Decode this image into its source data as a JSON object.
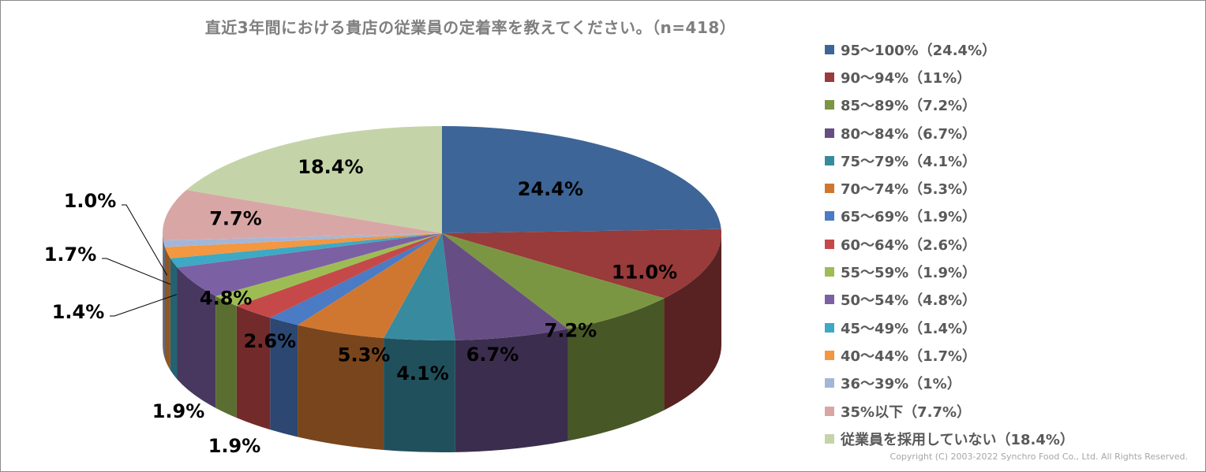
{
  "chart_data": {
    "type": "pie",
    "title": "直近3年間における貴店の従業員の定着率を教えてください。（n=418）",
    "data_labels": [
      "24.4%",
      "11.0%",
      "7.2%",
      "6.7%",
      "4.1%",
      "5.3%",
      "1.9%",
      "2.6%",
      "1.9%",
      "4.8%",
      "1.4%",
      "1.7%",
      "1.0%",
      "7.7%",
      "18.4%"
    ],
    "slices": [
      {
        "legend": "95～100%（24.4%）",
        "value": 24.4,
        "color": "#3d6597"
      },
      {
        "legend": "90～94%（11%）",
        "value": 11.0,
        "color": "#983b3a"
      },
      {
        "legend": "85～89%（7.2%）",
        "value": 7.2,
        "color": "#7b9642"
      },
      {
        "legend": "80～84%（6.7%）",
        "value": 6.7,
        "color": "#664e84"
      },
      {
        "legend": "75～79%（4.1%）",
        "value": 4.1,
        "color": "#388a9f"
      },
      {
        "legend": "70～74%（5.3%）",
        "value": 5.3,
        "color": "#cf7731"
      },
      {
        "legend": "65～69%（1.9%）",
        "value": 1.9,
        "color": "#4a7bc4"
      },
      {
        "legend": "60～64%（2.6%）",
        "value": 2.6,
        "color": "#c6494a"
      },
      {
        "legend": "55～59%（1.9%）",
        "value": 1.9,
        "color": "#9dbd54"
      },
      {
        "legend": "50～54%（4.8%）",
        "value": 4.8,
        "color": "#7c60a4"
      },
      {
        "legend": "45～49%（1.4%）",
        "value": 1.4,
        "color": "#3ea9c4"
      },
      {
        "legend": "40～44%（1.7%）",
        "value": 1.7,
        "color": "#f39740"
      },
      {
        "legend": "36～39%（1%）",
        "value": 1.0,
        "color": "#a4b6d8"
      },
      {
        "legend": "35%以下（7.7%）",
        "value": 7.7,
        "color": "#d9a6a6"
      },
      {
        "legend": "従業員を採用していない（18.4%）",
        "value": 18.4,
        "color": "#c4d4a8"
      }
    ],
    "legend_position": "right"
  },
  "copyright": "Copyright (C) 2003-2022 Synchro Food Co., Ltd. All Rights Reserved."
}
